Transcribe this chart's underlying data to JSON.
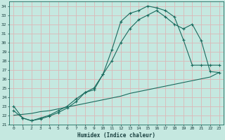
{
  "xlabel": "Humidex (Indice chaleur)",
  "xlim": [
    -0.5,
    23.5
  ],
  "ylim": [
    21,
    34.5
  ],
  "xticks": [
    0,
    1,
    2,
    3,
    4,
    5,
    6,
    7,
    8,
    9,
    10,
    11,
    12,
    13,
    14,
    15,
    16,
    17,
    18,
    19,
    20,
    21,
    22,
    23
  ],
  "yticks": [
    21,
    22,
    23,
    24,
    25,
    26,
    27,
    28,
    29,
    30,
    31,
    32,
    33,
    34
  ],
  "bg_color": "#c5e8e0",
  "line_color": "#1a6b5e",
  "grid_color": "#dbb8b8",
  "curve1_x": [
    0,
    1,
    2,
    3,
    4,
    5,
    6,
    7,
    8,
    9,
    10,
    11,
    12,
    13,
    14,
    15,
    16,
    17,
    18,
    19,
    20,
    21,
    22,
    23
  ],
  "curve1_y": [
    23.0,
    21.7,
    21.4,
    21.6,
    21.9,
    22.3,
    22.8,
    23.5,
    24.5,
    24.8,
    26.5,
    29.2,
    32.3,
    33.2,
    33.5,
    34.0,
    33.8,
    33.5,
    32.8,
    30.3,
    27.5,
    27.5,
    27.5,
    27.5
  ],
  "curve2_x": [
    0,
    1,
    2,
    3,
    4,
    5,
    6,
    7,
    8,
    9,
    10,
    11,
    12,
    13,
    14,
    15,
    16,
    17,
    18,
    19,
    20,
    21,
    22,
    23
  ],
  "curve2_y": [
    22.5,
    21.7,
    21.4,
    21.7,
    22.0,
    22.5,
    23.0,
    23.8,
    24.5,
    25.0,
    26.5,
    28.0,
    30.0,
    31.5,
    32.5,
    33.0,
    33.5,
    32.8,
    32.0,
    31.5,
    32.0,
    30.2,
    26.8,
    26.7
  ],
  "curve3_x": [
    0,
    1,
    2,
    3,
    4,
    5,
    6,
    7,
    8,
    9,
    10,
    11,
    12,
    13,
    14,
    15,
    16,
    17,
    18,
    19,
    20,
    21,
    22,
    23
  ],
  "curve3_y": [
    22.0,
    22.1,
    22.2,
    22.4,
    22.5,
    22.7,
    22.9,
    23.1,
    23.3,
    23.5,
    23.7,
    23.9,
    24.1,
    24.4,
    24.6,
    24.8,
    25.0,
    25.2,
    25.4,
    25.6,
    25.8,
    26.0,
    26.2,
    26.7
  ]
}
